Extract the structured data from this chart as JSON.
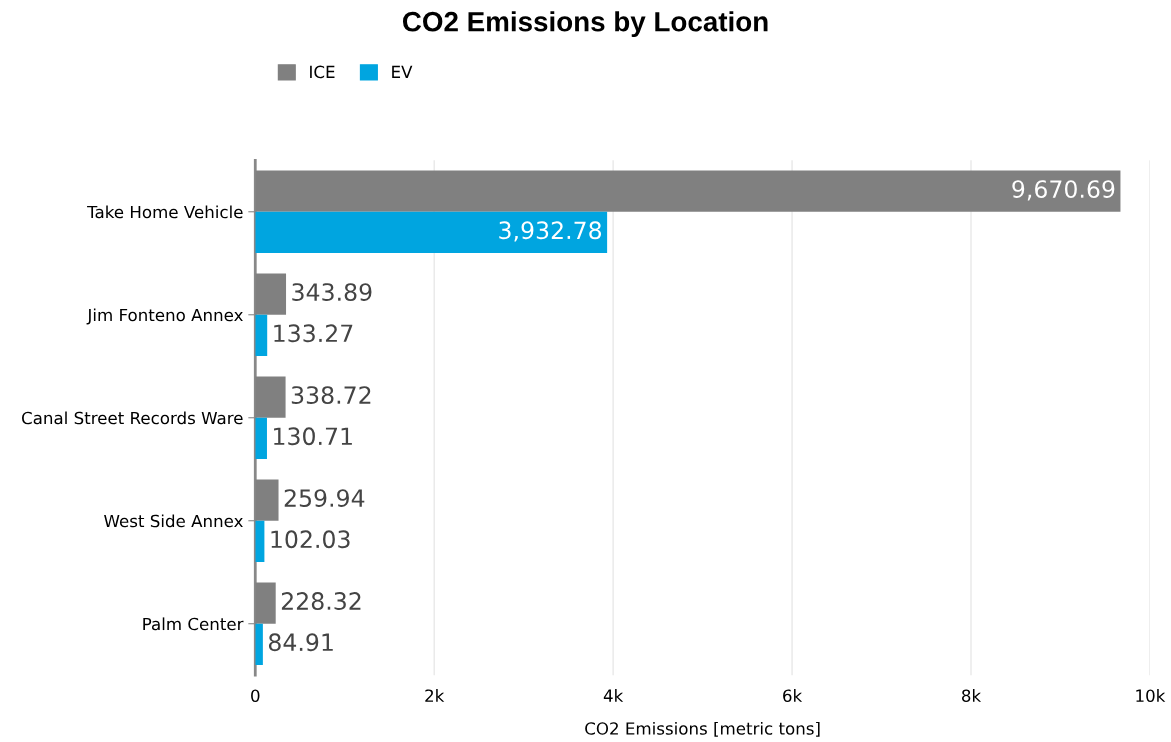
{
  "chart_data": {
    "type": "bar",
    "orientation": "horizontal",
    "title": "CO2 Emissions by Location",
    "xlabel": "CO2 Emissions [metric tons]",
    "categories": [
      "Take Home Vehicle",
      "Jim Fonteno Annex",
      "Canal Street Records Ware",
      "West Side Annex",
      "Palm Center"
    ],
    "series": [
      {
        "name": "ICE",
        "color": "#808080",
        "values": [
          9670.69,
          343.89,
          338.72,
          259.94,
          228.32
        ],
        "value_labels": [
          "9,670.69",
          "343.89",
          "338.72",
          "259.94",
          "228.32"
        ]
      },
      {
        "name": "EV",
        "color": "#00a5e0",
        "values": [
          3932.78,
          133.27,
          130.71,
          102.03,
          84.91
        ],
        "value_labels": [
          "3,932.78",
          "133.27",
          "130.71",
          "102.03",
          "84.91"
        ]
      }
    ],
    "xlim": [
      0,
      10000
    ],
    "xticks": [
      0,
      {
        "value": 2000,
        "label": "2k"
      },
      {
        "value": 4000,
        "label": "4k"
      },
      {
        "value": 6000,
        "label": "6k"
      },
      {
        "value": 8000,
        "label": "8k"
      },
      {
        "value": 10000,
        "label": "10k"
      }
    ],
    "grid": "x",
    "legend": "top left"
  }
}
